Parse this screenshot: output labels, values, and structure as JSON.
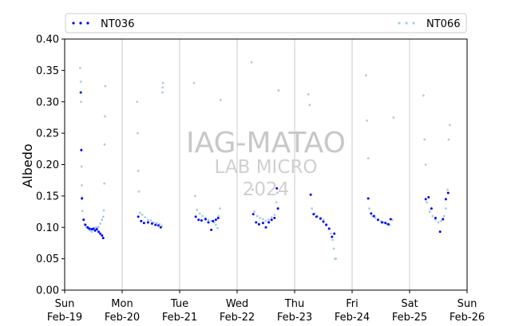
{
  "chart_data": {
    "type": "scatter",
    "ylabel": "Albedo",
    "xlabel": "",
    "ylim": [
      0,
      0.4
    ],
    "yticks": [
      0.0,
      0.05,
      0.1,
      0.15,
      0.2,
      0.25,
      0.3,
      0.35,
      0.4
    ],
    "ytick_labels": [
      "0.00",
      "0.05",
      "0.10",
      "0.15",
      "0.20",
      "0.25",
      "0.30",
      "0.35",
      "0.40"
    ],
    "xlim_days": [
      0,
      7
    ],
    "xticks": [
      {
        "day": 0,
        "line1": "Sun",
        "line2": "Feb-19"
      },
      {
        "day": 1,
        "line1": "Mon",
        "line2": "Feb-20"
      },
      {
        "day": 2,
        "line1": "Tue",
        "line2": "Feb-21"
      },
      {
        "day": 3,
        "line1": "Wed",
        "line2": "Feb-22"
      },
      {
        "day": 4,
        "line1": "Thu",
        "line2": "Feb-23"
      },
      {
        "day": 5,
        "line1": "Fri",
        "line2": "Feb-24"
      },
      {
        "day": 6,
        "line1": "Sat",
        "line2": "Feb-25"
      },
      {
        "day": 7,
        "line1": "Sun",
        "line2": "Feb-26"
      }
    ],
    "grid": "vertical",
    "legend_placement": "top",
    "watermark": [
      "IAG-MATAO",
      "LAB MICRO",
      "2024"
    ],
    "series": [
      {
        "name": "NT036",
        "color": "#0000ff",
        "points": [
          [
            0.28,
            0.315
          ],
          [
            0.29,
            0.223
          ],
          [
            0.3,
            0.146
          ],
          [
            0.33,
            0.112
          ],
          [
            0.36,
            0.104
          ],
          [
            0.4,
            0.1
          ],
          [
            0.43,
            0.098
          ],
          [
            0.47,
            0.097
          ],
          [
            0.5,
            0.098
          ],
          [
            0.53,
            0.095
          ],
          [
            0.56,
            0.097
          ],
          [
            0.59,
            0.093
          ],
          [
            0.62,
            0.09
          ],
          [
            0.65,
            0.087
          ],
          [
            0.67,
            0.083
          ],
          [
            1.28,
            0.117
          ],
          [
            1.33,
            0.11
          ],
          [
            1.38,
            0.107
          ],
          [
            1.45,
            0.108
          ],
          [
            1.52,
            0.106
          ],
          [
            1.58,
            0.104
          ],
          [
            1.63,
            0.103
          ],
          [
            1.67,
            0.1
          ],
          [
            2.28,
            0.117
          ],
          [
            2.33,
            0.112
          ],
          [
            2.38,
            0.111
          ],
          [
            2.45,
            0.113
          ],
          [
            2.5,
            0.108
          ],
          [
            2.55,
            0.096
          ],
          [
            2.58,
            0.11
          ],
          [
            2.63,
            0.112
          ],
          [
            2.67,
            0.115
          ],
          [
            3.28,
            0.121
          ],
          [
            3.33,
            0.108
          ],
          [
            3.38,
            0.105
          ],
          [
            3.45,
            0.107
          ],
          [
            3.5,
            0.1
          ],
          [
            3.55,
            0.108
          ],
          [
            3.6,
            0.112
          ],
          [
            3.65,
            0.115
          ],
          [
            3.69,
            0.162
          ],
          [
            3.71,
            0.13
          ],
          [
            4.28,
            0.152
          ],
          [
            4.33,
            0.121
          ],
          [
            4.38,
            0.117
          ],
          [
            4.45,
            0.114
          ],
          [
            4.5,
            0.109
          ],
          [
            4.55,
            0.104
          ],
          [
            4.6,
            0.098
          ],
          [
            4.65,
            0.085
          ],
          [
            4.69,
            0.09
          ],
          [
            5.28,
            0.146
          ],
          [
            5.33,
            0.122
          ],
          [
            5.38,
            0.118
          ],
          [
            5.45,
            0.112
          ],
          [
            5.52,
            0.108
          ],
          [
            5.58,
            0.107
          ],
          [
            5.63,
            0.105
          ],
          [
            5.67,
            0.113
          ],
          [
            6.28,
            0.145
          ],
          [
            6.33,
            0.148
          ],
          [
            6.38,
            0.13
          ],
          [
            6.45,
            0.115
          ],
          [
            6.53,
            0.093
          ],
          [
            6.58,
            0.113
          ],
          [
            6.63,
            0.145
          ],
          [
            6.67,
            0.155
          ]
        ]
      },
      {
        "name": "NT066",
        "color": "#a6cee3",
        "points": [
          [
            0.27,
            0.354
          ],
          [
            0.28,
            0.332
          ],
          [
            0.285,
            0.3
          ],
          [
            0.29,
            0.224
          ],
          [
            0.295,
            0.197
          ],
          [
            0.3,
            0.167
          ],
          [
            0.305,
            0.148
          ],
          [
            0.31,
            0.126
          ],
          [
            0.33,
            0.113
          ],
          [
            0.35,
            0.105
          ],
          [
            0.38,
            0.1
          ],
          [
            0.41,
            0.098
          ],
          [
            0.44,
            0.095
          ],
          [
            0.47,
            0.093
          ],
          [
            0.5,
            0.096
          ],
          [
            0.53,
            0.099
          ],
          [
            0.56,
            0.1
          ],
          [
            0.59,
            0.101
          ],
          [
            0.62,
            0.106
          ],
          [
            0.65,
            0.112
          ],
          [
            0.67,
            0.117
          ],
          [
            0.68,
            0.127
          ],
          [
            0.69,
            0.17
          ],
          [
            0.695,
            0.232
          ],
          [
            0.7,
            0.277
          ],
          [
            0.705,
            0.325
          ],
          [
            1.26,
            0.3
          ],
          [
            1.27,
            0.25
          ],
          [
            1.28,
            0.19
          ],
          [
            1.29,
            0.157
          ],
          [
            1.31,
            0.123
          ],
          [
            1.35,
            0.12
          ],
          [
            1.4,
            0.116
          ],
          [
            1.45,
            0.112
          ],
          [
            1.5,
            0.111
          ],
          [
            1.55,
            0.108
          ],
          [
            1.6,
            0.107
          ],
          [
            1.65,
            0.105
          ],
          [
            1.69,
            0.102
          ],
          [
            1.7,
            0.315
          ],
          [
            1.705,
            0.323
          ],
          [
            1.71,
            0.33
          ],
          [
            2.25,
            0.33
          ],
          [
            2.27,
            0.15
          ],
          [
            2.3,
            0.128
          ],
          [
            2.35,
            0.122
          ],
          [
            2.4,
            0.118
          ],
          [
            2.45,
            0.115
          ],
          [
            2.5,
            0.112
          ],
          [
            2.55,
            0.11
          ],
          [
            2.6,
            0.108
          ],
          [
            2.63,
            0.104
          ],
          [
            2.66,
            0.099
          ],
          [
            2.68,
            0.118
          ],
          [
            2.7,
            0.13
          ],
          [
            2.71,
            0.303
          ],
          [
            3.25,
            0.363
          ],
          [
            3.27,
            0.16
          ],
          [
            3.3,
            0.125
          ],
          [
            3.35,
            0.118
          ],
          [
            3.4,
            0.115
          ],
          [
            3.45,
            0.113
          ],
          [
            3.5,
            0.11
          ],
          [
            3.55,
            0.112
          ],
          [
            3.6,
            0.116
          ],
          [
            3.65,
            0.12
          ],
          [
            3.68,
            0.14
          ],
          [
            3.7,
            0.155
          ],
          [
            3.72,
            0.318
          ],
          [
            4.24,
            0.312
          ],
          [
            4.26,
            0.295
          ],
          [
            4.28,
            0.24
          ],
          [
            4.3,
            0.13
          ],
          [
            4.35,
            0.122
          ],
          [
            4.4,
            0.118
          ],
          [
            4.45,
            0.115
          ],
          [
            4.5,
            0.112
          ],
          [
            4.55,
            0.105
          ],
          [
            4.6,
            0.098
          ],
          [
            4.63,
            0.09
          ],
          [
            4.66,
            0.08
          ],
          [
            4.68,
            0.066
          ],
          [
            4.7,
            0.05
          ],
          [
            4.72,
            0.05
          ],
          [
            5.24,
            0.342
          ],
          [
            5.26,
            0.27
          ],
          [
            5.28,
            0.21
          ],
          [
            5.3,
            0.13
          ],
          [
            5.35,
            0.118
          ],
          [
            5.4,
            0.115
          ],
          [
            5.45,
            0.112
          ],
          [
            5.5,
            0.11
          ],
          [
            5.55,
            0.108
          ],
          [
            5.6,
            0.105
          ],
          [
            5.65,
            0.104
          ],
          [
            5.7,
            0.112
          ],
          [
            5.72,
            0.275
          ],
          [
            6.24,
            0.31
          ],
          [
            6.26,
            0.24
          ],
          [
            6.28,
            0.2
          ],
          [
            6.3,
            0.14
          ],
          [
            6.35,
            0.125
          ],
          [
            6.4,
            0.118
          ],
          [
            6.45,
            0.112
          ],
          [
            6.5,
            0.108
          ],
          [
            6.55,
            0.11
          ],
          [
            6.6,
            0.118
          ],
          [
            6.63,
            0.13
          ],
          [
            6.66,
            0.16
          ],
          [
            6.68,
            0.24
          ],
          [
            6.7,
            0.263
          ]
        ]
      }
    ]
  }
}
